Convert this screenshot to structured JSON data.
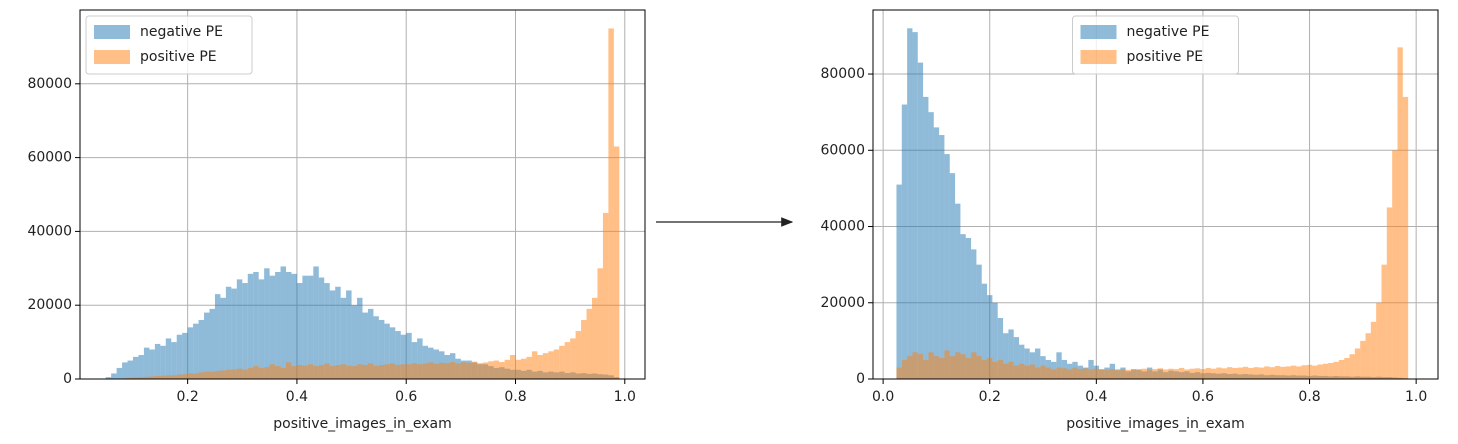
{
  "chart_data": [
    {
      "type": "histogram",
      "xlabel": "positive_images_in_exam",
      "xlim": [
        0.003,
        1.037
      ],
      "ylim": [
        0,
        100000
      ],
      "xticks": [
        0.2,
        0.4,
        0.6,
        0.8,
        {
          "value": 1,
          "label": "1.0"
        }
      ],
      "yticks": [
        0,
        20000,
        40000,
        60000,
        80000
      ],
      "grid": true,
      "legend": "upper left",
      "bins": [
        0.05,
        0.06,
        0.07,
        0.08,
        0.09,
        0.1,
        0.11,
        0.12,
        0.13,
        0.14,
        0.15,
        0.16,
        0.17,
        0.18,
        0.19,
        0.2,
        0.21,
        0.22,
        0.23,
        0.24,
        0.25,
        0.26,
        0.27,
        0.28,
        0.29,
        0.3,
        0.31,
        0.32,
        0.33,
        0.34,
        0.35,
        0.36,
        0.37,
        0.38,
        0.39,
        0.4,
        0.41,
        0.42,
        0.43,
        0.44,
        0.45,
        0.46,
        0.47,
        0.48,
        0.49,
        0.5,
        0.51,
        0.52,
        0.53,
        0.54,
        0.55,
        0.56,
        0.57,
        0.58,
        0.59,
        0.6,
        0.61,
        0.62,
        0.63,
        0.64,
        0.65,
        0.66,
        0.67,
        0.68,
        0.69,
        0.7,
        0.71,
        0.72,
        0.73,
        0.74,
        0.75,
        0.76,
        0.77,
        0.78,
        0.79,
        0.8,
        0.81,
        0.82,
        0.83,
        0.84,
        0.85,
        0.86,
        0.87,
        0.88,
        0.89,
        0.9,
        0.91,
        0.92,
        0.93,
        0.94,
        0.95,
        0.96,
        0.97,
        0.98,
        0.99
      ],
      "series": [
        {
          "name": "negative PE",
          "color": "#1f77b4",
          "values": [
            500,
            1500,
            3000,
            4500,
            5000,
            6000,
            6500,
            8500,
            8000,
            9500,
            9000,
            11000,
            10000,
            12000,
            12500,
            14000,
            15000,
            16000,
            18000,
            19000,
            23000,
            22000,
            25000,
            24500,
            27000,
            26000,
            28500,
            29000,
            27000,
            30000,
            28000,
            29000,
            30500,
            29000,
            28500,
            26000,
            28000,
            28000,
            30500,
            27500,
            26000,
            24000,
            25000,
            22000,
            24000,
            20000,
            22000,
            18000,
            19000,
            17000,
            16000,
            15000,
            14000,
            13000,
            12000,
            12500,
            10000,
            11000,
            9000,
            8500,
            8000,
            7500,
            6500,
            7000,
            5500,
            5000,
            5000,
            4500,
            4000,
            4000,
            3500,
            3000,
            3200,
            2800,
            2500,
            2500,
            2200,
            2500,
            2000,
            2200,
            1800,
            2000,
            1800,
            2000,
            1600,
            1800,
            1500,
            1600,
            1400,
            1500,
            1300,
            1200,
            1000,
            500
          ]
        },
        {
          "name": "positive PE",
          "color": "#ff7f0e",
          "values": [
            0,
            0,
            100,
            200,
            300,
            400,
            500,
            600,
            700,
            800,
            900,
            1000,
            1000,
            1200,
            1300,
            1500,
            1500,
            1800,
            2000,
            2000,
            2200,
            2300,
            2500,
            2600,
            2800,
            2500,
            3000,
            3500,
            3000,
            3200,
            4000,
            3500,
            3000,
            4500,
            3500,
            3800,
            3600,
            4000,
            3500,
            3800,
            4200,
            3500,
            3800,
            4000,
            3600,
            3500,
            4000,
            3800,
            4200,
            3600,
            3800,
            4000,
            4200,
            3800,
            4000,
            4000,
            4300,
            4000,
            4200,
            4500,
            4100,
            4400,
            4300,
            4600,
            4200,
            4500,
            4400,
            4700,
            4300,
            4500,
            4800,
            5000,
            4600,
            5200,
            6500,
            5200,
            5500,
            6000,
            7500,
            6500,
            7000,
            7500,
            8000,
            9000,
            10000,
            11000,
            13000,
            16000,
            19000,
            22000,
            30000,
            45000,
            95000,
            63000
          ]
        }
      ]
    },
    {
      "type": "histogram",
      "xlabel": "positive_images_in_exam",
      "xlim": [
        -0.019,
        1.041
      ],
      "ylim": [
        0,
        96800
      ],
      "xticks": [
        {
          "value": 0,
          "label": "0.0"
        },
        0.2,
        0.4,
        0.6,
        0.8,
        {
          "value": 1,
          "label": "1.0"
        }
      ],
      "yticks": [
        0,
        20000,
        40000,
        60000,
        80000
      ],
      "grid": true,
      "legend": "upper center",
      "bins": [
        0.025,
        0.035,
        0.045,
        0.055,
        0.065,
        0.075,
        0.085,
        0.095,
        0.105,
        0.115,
        0.125,
        0.135,
        0.145,
        0.155,
        0.165,
        0.175,
        0.185,
        0.195,
        0.205,
        0.215,
        0.225,
        0.235,
        0.245,
        0.255,
        0.265,
        0.275,
        0.285,
        0.295,
        0.305,
        0.315,
        0.325,
        0.335,
        0.345,
        0.355,
        0.365,
        0.375,
        0.385,
        0.395,
        0.405,
        0.415,
        0.425,
        0.435,
        0.445,
        0.455,
        0.465,
        0.475,
        0.485,
        0.495,
        0.505,
        0.515,
        0.525,
        0.535,
        0.545,
        0.555,
        0.565,
        0.575,
        0.585,
        0.595,
        0.605,
        0.615,
        0.625,
        0.635,
        0.645,
        0.655,
        0.665,
        0.675,
        0.685,
        0.695,
        0.705,
        0.715,
        0.725,
        0.735,
        0.745,
        0.755,
        0.765,
        0.775,
        0.785,
        0.795,
        0.805,
        0.815,
        0.825,
        0.835,
        0.845,
        0.855,
        0.865,
        0.875,
        0.885,
        0.895,
        0.905,
        0.915,
        0.925,
        0.935,
        0.945,
        0.955,
        0.965,
        0.975,
        0.985
      ],
      "series": [
        {
          "name": "negative PE",
          "color": "#1f77b4",
          "values": [
            51000,
            72000,
            92000,
            91000,
            83000,
            74000,
            70000,
            66000,
            64000,
            59000,
            54000,
            46000,
            38000,
            37000,
            34000,
            30000,
            25000,
            22000,
            20000,
            16000,
            12000,
            13000,
            11000,
            9000,
            8000,
            7000,
            8000,
            6000,
            5000,
            4500,
            7000,
            5000,
            4000,
            4500,
            3500,
            3000,
            5000,
            3500,
            2500,
            3000,
            4000,
            2500,
            3000,
            2000,
            2500,
            2500,
            2000,
            3000,
            2000,
            2500,
            1800,
            2200,
            2000,
            1800,
            2000,
            1600,
            1800,
            1500,
            1600,
            1500,
            1400,
            1500,
            1300,
            1400,
            1200,
            1300,
            1200,
            1100,
            1200,
            1000,
            1100,
            1000,
            1000,
            900,
            1000,
            900,
            900,
            800,
            900,
            800,
            800,
            700,
            800,
            700,
            700,
            600,
            700,
            600,
            600,
            500,
            600,
            500,
            500,
            400,
            300,
            200
          ]
        },
        {
          "name": "positive PE",
          "color": "#ff7f0e",
          "values": [
            3000,
            5000,
            6000,
            7000,
            6500,
            5000,
            7000,
            6000,
            5500,
            7500,
            6000,
            7000,
            6500,
            5500,
            7000,
            6000,
            5000,
            5500,
            4500,
            5000,
            4000,
            4500,
            3500,
            4000,
            3500,
            3800,
            3000,
            3500,
            3000,
            2500,
            3000,
            2800,
            2500,
            3000,
            2600,
            2800,
            2500,
            2700,
            2600,
            2400,
            2600,
            2300,
            2500,
            2400,
            2600,
            2500,
            2700,
            2400,
            2600,
            2800,
            2500,
            2700,
            2600,
            2900,
            2500,
            2700,
            2800,
            2600,
            2900,
            2700,
            3000,
            2800,
            3100,
            2900,
            3000,
            3200,
            2900,
            3100,
            3000,
            3300,
            3100,
            3400,
            3200,
            3300,
            3500,
            3300,
            3600,
            3700,
            3500,
            3800,
            4000,
            4200,
            4500,
            5000,
            5500,
            6500,
            8000,
            10000,
            12000,
            15000,
            20000,
            30000,
            45000,
            60000,
            87000,
            74000
          ]
        }
      ]
    }
  ]
}
